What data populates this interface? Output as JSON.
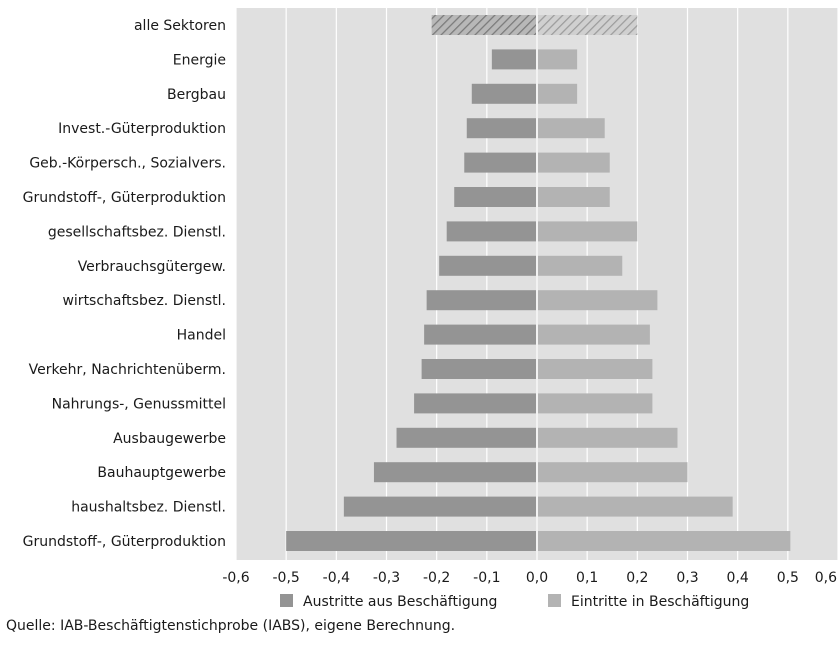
{
  "chart_data": {
    "type": "bar",
    "orientation": "horizontal",
    "categories": [
      "alle Sektoren",
      "Energie",
      "Bergbau",
      "Invest.-Güterproduktion",
      "Geb.-Körpersch., Sozialvers.",
      "Grundstoff-, Güterproduktion",
      "gesellschaftsbez. Dienstl.",
      "Verbrauchsgütergew.",
      "wirtschaftsbez. Dienstl.",
      "Handel",
      "Verkehr, Nachrichtenüberm.",
      "Nahrungs-, Genussmittel",
      "Ausbaugewerbe",
      "Bauhauptgewerbe",
      "haushaltsbez. Dienstl.",
      "Grundstoff-, Güterproduktion"
    ],
    "series": [
      {
        "name": "Austritte aus Beschäftigung",
        "color": "#949494",
        "values": [
          -0.21,
          -0.09,
          -0.13,
          -0.14,
          -0.145,
          -0.165,
          -0.18,
          -0.195,
          -0.22,
          -0.225,
          -0.23,
          -0.245,
          -0.28,
          -0.325,
          -0.385,
          -0.5
        ]
      },
      {
        "name": "Eintritte in Beschäftigung",
        "color": "#b3b3b3",
        "values": [
          0.2,
          0.08,
          0.08,
          0.135,
          0.145,
          0.145,
          0.2,
          0.17,
          0.24,
          0.225,
          0.23,
          0.23,
          0.28,
          0.3,
          0.39,
          0.505
        ]
      }
    ],
    "hatched_categories": [
      "alle Sektoren"
    ],
    "xlim": [
      -0.6,
      0.6
    ],
    "xticks": [
      "-0,6",
      "-0,5",
      "-0,4",
      "-0,3",
      "-0,2",
      "-0,1",
      "0,0",
      "0,1",
      "0,2",
      "0,3",
      "0,4",
      "0,5",
      "0,6"
    ],
    "grid": true,
    "legend_position": "bottom",
    "plot_background": "#e0e0e0",
    "grid_color": "#ffffff"
  },
  "source": "Quelle: IAB-Beschäftigtenstichprobe (IABS), eigene Berechnung."
}
